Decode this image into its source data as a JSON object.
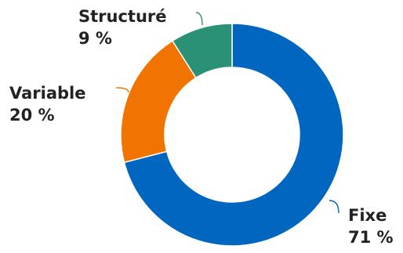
{
  "chart_data": {
    "type": "pie",
    "variant": "donut",
    "title": "",
    "slices": [
      {
        "label": "Fixe",
        "value": 71,
        "value_label": "71 %",
        "color": "#0066c0"
      },
      {
        "label": "Variable",
        "value": 20,
        "value_label": "20 %",
        "color": "#f27400"
      },
      {
        "label": "Structuré",
        "value": 9,
        "value_label": "9 %",
        "color": "#2a9176"
      }
    ],
    "start_angle_deg": 0,
    "direction": "clockwise",
    "legend": "none",
    "leader_line_color": "#f0a060"
  }
}
